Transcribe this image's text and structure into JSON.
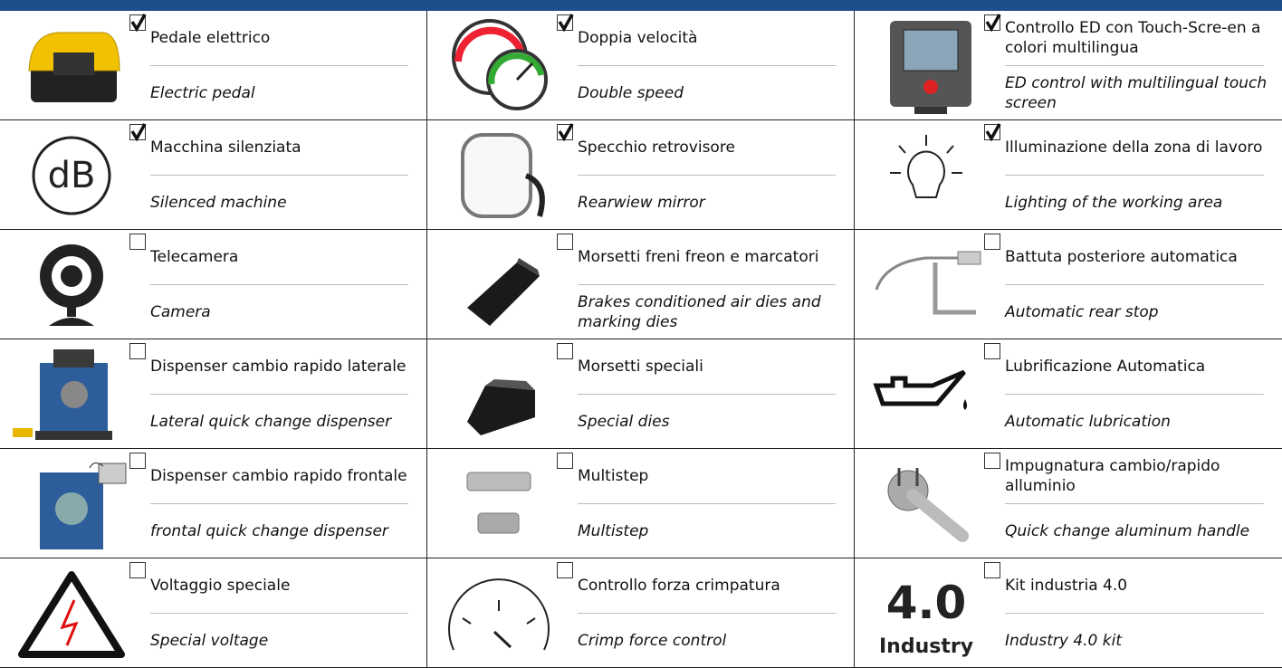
{
  "items": [
    {
      "it": "Pedale elettrico",
      "en": "Electric pedal",
      "checked": true
    },
    {
      "it": "Doppia velocità",
      "en": "Double speed",
      "checked": true
    },
    {
      "it": "Controllo ED con Touch-Scre-en a colori multilingua",
      "en": "ED control with multilingual touch screen",
      "checked": true
    },
    {
      "it": "Macchina silenziata",
      "en": "Silenced machine",
      "checked": true,
      "icon_text": [
        "dB"
      ]
    },
    {
      "it": "Specchio retrovisore",
      "en": "Rearwiew mirror",
      "checked": true
    },
    {
      "it": "Illuminazione della zona di lavoro",
      "en": "Lighting of the working area",
      "checked": true
    },
    {
      "it": "Telecamera",
      "en": "Camera",
      "checked": false
    },
    {
      "it": "Morsetti freni freon e marcatori",
      "en": "Brakes conditioned air dies and marking dies",
      "checked": false
    },
    {
      "it": "Battuta posteriore automatica",
      "en": "Automatic rear stop",
      "checked": false
    },
    {
      "it": "Dispenser cambio rapido laterale",
      "en": "Lateral quick change dispenser",
      "checked": false
    },
    {
      "it": "Morsetti speciali",
      "en": "Special dies",
      "checked": false
    },
    {
      "it": "Lubrificazione Automatica",
      "en": "Automatic lubrication",
      "checked": false
    },
    {
      "it": "Dispenser cambio rapido frontale",
      "en": "frontal quick change dispenser",
      "checked": false
    },
    {
      "it": "Multistep",
      "en": "Multistep",
      "checked": false
    },
    {
      "it": "Impugnatura cambio/rapido alluminio",
      "en": "Quick change aluminum handle",
      "checked": false
    },
    {
      "it": "Voltaggio speciale",
      "en": "Special voltage",
      "checked": false
    },
    {
      "it": "Controllo forza crimpatura",
      "en": "Crimp force control",
      "checked": false
    },
    {
      "it": "Kit industria 4.0",
      "en": "Industry 4.0 kit",
      "checked": false,
      "icon_text": [
        "4.0",
        "Industry"
      ]
    }
  ]
}
